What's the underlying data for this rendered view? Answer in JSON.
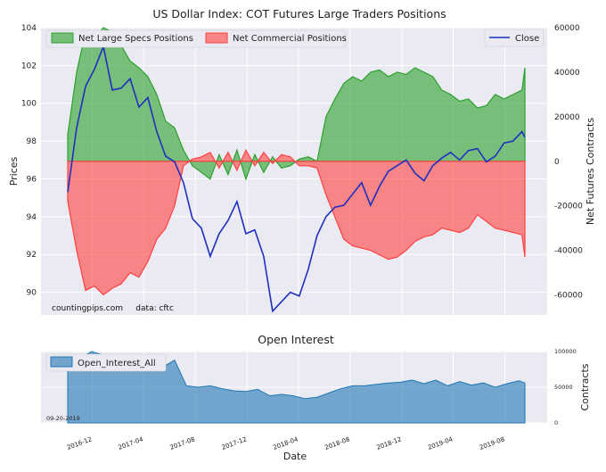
{
  "chart_data": [
    {
      "type": "area",
      "title": "US Dollar Index: COT Futures Large Traders Positions",
      "ylabel_left": "Prices",
      "ylabel_right": "Net Futures Contracts",
      "ylim_left": [
        88.8,
        104
      ],
      "yticks_left": [
        "90",
        "92",
        "94",
        "96",
        "98",
        "100",
        "102",
        "104"
      ],
      "ylim_right": [
        -69000,
        60000
      ],
      "yticks_right": [
        "-60000",
        "-40000",
        "-20000",
        "0",
        "20000",
        "40000",
        "60000"
      ],
      "x_start": "2016-10-04",
      "x_end": "2019-09-17",
      "legend": {
        "specs": "Net Large Specs Positions",
        "commercial": "Net Commercial Positions",
        "close": "Close"
      },
      "annotation": "countingpips.com     data: cftc",
      "series": [
        {
          "name": "Net Large Specs Positions",
          "color": "#2ca02c",
          "x": [
            "2016-10-04",
            "2016-10-25",
            "2016-11-15",
            "2016-12-06",
            "2016-12-27",
            "2017-01-17",
            "2017-02-07",
            "2017-02-28",
            "2017-03-21",
            "2017-04-11",
            "2017-05-02",
            "2017-05-23",
            "2017-06-13",
            "2017-07-04",
            "2017-07-25",
            "2017-08-15",
            "2017-09-05",
            "2017-09-26",
            "2017-10-17",
            "2017-11-07",
            "2017-11-28",
            "2017-12-19",
            "2018-01-09",
            "2018-01-30",
            "2018-02-20",
            "2018-03-13",
            "2018-04-03",
            "2018-04-24",
            "2018-05-15",
            "2018-06-05",
            "2018-06-26",
            "2018-07-17",
            "2018-08-07",
            "2018-08-28",
            "2018-09-18",
            "2018-10-09",
            "2018-10-30",
            "2018-11-20",
            "2018-12-11",
            "2019-01-01",
            "2019-01-22",
            "2019-02-12",
            "2019-03-05",
            "2019-03-26",
            "2019-04-16",
            "2019-05-07",
            "2019-05-28",
            "2019-06-18",
            "2019-07-09",
            "2019-07-30",
            "2019-08-20",
            "2019-09-10",
            "2019-09-17"
          ],
          "values": [
            12000,
            40000,
            58000,
            55000,
            60000,
            58000,
            52000,
            45000,
            42000,
            38000,
            30000,
            18000,
            15000,
            5000,
            -2000,
            -5000,
            -8000,
            3000,
            -6000,
            5000,
            -8000,
            3000,
            -5000,
            2000,
            -3000,
            -2000,
            1000,
            2000,
            0,
            20000,
            28000,
            35000,
            38000,
            36000,
            40000,
            41000,
            38000,
            40000,
            39000,
            42000,
            40000,
            38000,
            32000,
            30000,
            27000,
            28000,
            24000,
            25000,
            30000,
            28000,
            30000,
            32000,
            42000
          ]
        },
        {
          "name": "Net Commercial Positions",
          "color": "#ff4040",
          "x": [
            "2016-10-04",
            "2016-10-25",
            "2016-11-15",
            "2016-12-06",
            "2016-12-27",
            "2017-01-17",
            "2017-02-07",
            "2017-02-28",
            "2017-03-21",
            "2017-04-11",
            "2017-05-02",
            "2017-05-23",
            "2017-06-13",
            "2017-07-04",
            "2017-07-25",
            "2017-08-15",
            "2017-09-05",
            "2017-09-26",
            "2017-10-17",
            "2017-11-07",
            "2017-11-28",
            "2017-12-19",
            "2018-01-09",
            "2018-01-30",
            "2018-02-20",
            "2018-03-13",
            "2018-04-03",
            "2018-04-24",
            "2018-05-15",
            "2018-06-05",
            "2018-06-26",
            "2018-07-17",
            "2018-08-07",
            "2018-08-28",
            "2018-09-18",
            "2018-10-09",
            "2018-10-30",
            "2018-11-20",
            "2018-12-11",
            "2019-01-01",
            "2019-01-22",
            "2019-02-12",
            "2019-03-05",
            "2019-03-26",
            "2019-04-16",
            "2019-05-07",
            "2019-05-28",
            "2019-06-18",
            "2019-07-09",
            "2019-07-30",
            "2019-08-20",
            "2019-09-10",
            "2019-09-17"
          ],
          "values": [
            -18000,
            -40000,
            -58000,
            -56000,
            -60000,
            -57000,
            -55000,
            -50000,
            -52000,
            -45000,
            -35000,
            -30000,
            -20000,
            -2000,
            1000,
            2000,
            4000,
            -3000,
            4000,
            -4000,
            5000,
            -2000,
            4000,
            -1000,
            3000,
            2000,
            -2000,
            -2000,
            -3000,
            -15000,
            -25000,
            -35000,
            -38000,
            -39000,
            -40000,
            -42000,
            -44000,
            -43000,
            -40000,
            -36000,
            -34000,
            -33000,
            -30000,
            -31000,
            -32000,
            -30000,
            -24000,
            -27000,
            -30000,
            -31000,
            -32000,
            -33000,
            -43000
          ]
        },
        {
          "name": "Close",
          "color": "#1f2fbf",
          "x": [
            "2016-10-04",
            "2016-10-25",
            "2016-11-15",
            "2016-12-06",
            "2016-12-27",
            "2017-01-17",
            "2017-02-07",
            "2017-02-28",
            "2017-03-21",
            "2017-04-11",
            "2017-05-02",
            "2017-05-23",
            "2017-06-13",
            "2017-07-04",
            "2017-07-25",
            "2017-08-15",
            "2017-09-05",
            "2017-09-26",
            "2017-10-17",
            "2017-11-07",
            "2017-11-28",
            "2017-12-19",
            "2018-01-09",
            "2018-01-30",
            "2018-02-20",
            "2018-03-13",
            "2018-04-03",
            "2018-04-24",
            "2018-05-15",
            "2018-06-05",
            "2018-06-26",
            "2018-07-17",
            "2018-08-07",
            "2018-08-28",
            "2018-09-18",
            "2018-10-09",
            "2018-10-30",
            "2018-11-20",
            "2018-12-11",
            "2019-01-01",
            "2019-01-22",
            "2019-02-12",
            "2019-03-05",
            "2019-03-26",
            "2019-04-16",
            "2019-05-07",
            "2019-05-28",
            "2019-06-18",
            "2019-07-09",
            "2019-07-30",
            "2019-08-20",
            "2019-09-10",
            "2019-09-17"
          ],
          "values": [
            95.3,
            98.7,
            100.9,
            101.8,
            103.0,
            100.7,
            100.8,
            101.3,
            99.8,
            100.3,
            98.5,
            97.2,
            96.9,
            95.8,
            93.9,
            93.4,
            91.9,
            93.1,
            93.8,
            94.8,
            93.1,
            93.3,
            91.9,
            89.0,
            89.5,
            90.0,
            89.8,
            91.2,
            93.0,
            94.0,
            94.5,
            94.6,
            95.2,
            95.8,
            94.6,
            95.6,
            96.4,
            96.7,
            97.0,
            96.3,
            95.9,
            96.7,
            97.1,
            97.4,
            97.0,
            97.5,
            97.6,
            96.9,
            97.2,
            97.9,
            98.0,
            98.5,
            98.2
          ]
        }
      ]
    },
    {
      "type": "area",
      "title": "Open Interest",
      "xlabel": "Date",
      "ylabel": "Contracts",
      "ylim": [
        0,
        100000
      ],
      "yticks": [
        "0",
        "50000",
        "100000"
      ],
      "xticks": [
        "2016-12",
        "2017-04",
        "2017-08",
        "2017-12",
        "2018-04",
        "2018-08",
        "2018-12",
        "2019-04",
        "2019-08"
      ],
      "date_label": "09-20-2019",
      "series": [
        {
          "name": "Open_Interest_All",
          "color": "#1f77b4",
          "x": [
            "2016-10-04",
            "2016-11-01",
            "2016-11-29",
            "2016-12-27",
            "2017-01-24",
            "2017-02-21",
            "2017-03-21",
            "2017-04-18",
            "2017-05-16",
            "2017-06-13",
            "2017-07-11",
            "2017-08-08",
            "2017-09-05",
            "2017-10-03",
            "2017-10-31",
            "2017-11-28",
            "2017-12-26",
            "2018-01-23",
            "2018-02-20",
            "2018-03-20",
            "2018-04-17",
            "2018-05-15",
            "2018-06-12",
            "2018-07-10",
            "2018-08-07",
            "2018-09-04",
            "2018-10-02",
            "2018-10-30",
            "2018-11-27",
            "2018-12-25",
            "2019-01-22",
            "2019-02-19",
            "2019-03-19",
            "2019-04-16",
            "2019-05-14",
            "2019-06-11",
            "2019-07-09",
            "2019-08-06",
            "2019-09-03",
            "2019-09-17"
          ],
          "values": [
            72000,
            90000,
            100000,
            95000,
            92000,
            86000,
            80000,
            75000,
            78000,
            88000,
            52000,
            50000,
            52000,
            48000,
            45000,
            44000,
            47000,
            38000,
            40000,
            38000,
            34000,
            36000,
            42000,
            48000,
            52000,
            52000,
            54000,
            56000,
            57000,
            60000,
            55000,
            60000,
            52000,
            58000,
            53000,
            56000,
            50000,
            55000,
            59000,
            56000
          ]
        }
      ]
    }
  ]
}
